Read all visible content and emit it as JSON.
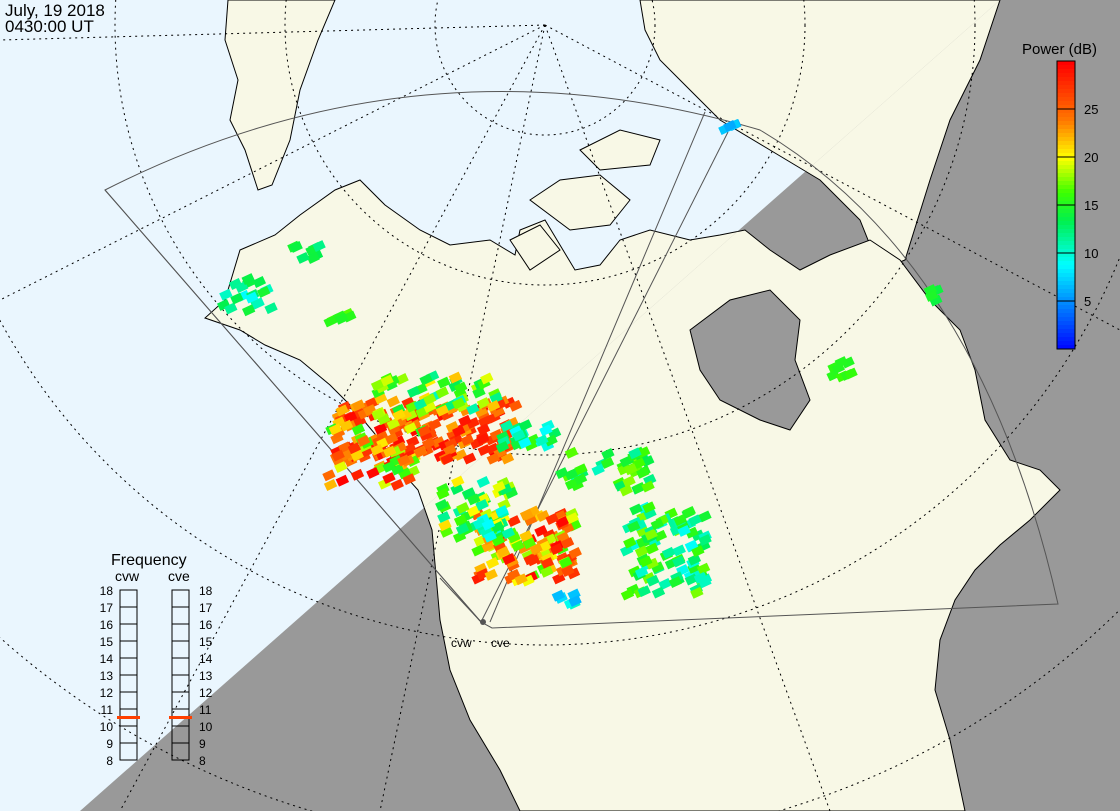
{
  "header": {
    "date": "July, 19 2018",
    "time": "0430:00 UT"
  },
  "colors": {
    "ocean_day": "#eaf6fe",
    "land_day": "#f8f8e6",
    "night": "#999999",
    "freq_marker": "#ff4000"
  },
  "colorbar": {
    "title": "Power (dB)",
    "range": [
      0,
      30
    ],
    "ticks": [
      {
        "value": 5,
        "label": "5"
      },
      {
        "value": 10,
        "label": "10"
      },
      {
        "value": 15,
        "label": "15"
      },
      {
        "value": 20,
        "label": "20"
      },
      {
        "value": 25,
        "label": "25"
      }
    ]
  },
  "radars": [
    {
      "code": "cvw",
      "label": "cvw",
      "frequency_mhz": 10.5
    },
    {
      "code": "cve",
      "label": "cve",
      "frequency_mhz": 10.5
    }
  ],
  "frequency_panel": {
    "title": "Frequency",
    "range": [
      8,
      18
    ],
    "ticks": [
      "8",
      "9",
      "10",
      "11",
      "12",
      "13",
      "14",
      "15",
      "16",
      "17",
      "18"
    ]
  }
}
